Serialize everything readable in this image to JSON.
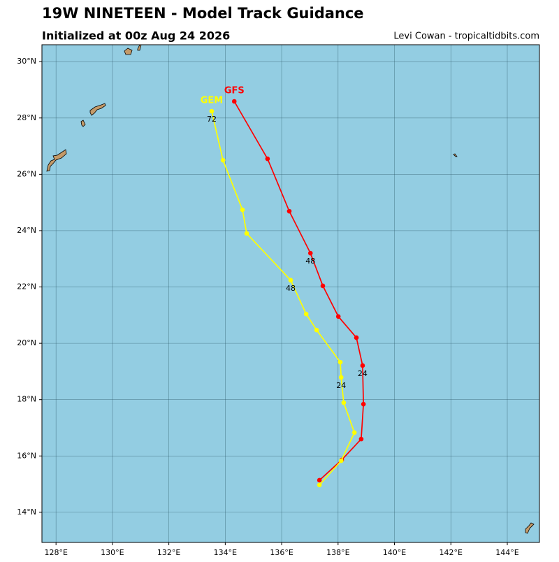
{
  "chart_data": {
    "type": "track",
    "title": "19W NINETEEN - Model Track Guidance",
    "subtitle": "Initialized at 00z Aug 24 2026",
    "credit": "Levi Cowan - tropicaltidbits.com",
    "xlim": [
      127.5,
      145.14
    ],
    "ylim": [
      12.93,
      30.6
    ],
    "xticks": [
      {
        "value": 128,
        "label": "128°E"
      },
      {
        "value": 130,
        "label": "130°E"
      },
      {
        "value": 132,
        "label": "132°E"
      },
      {
        "value": 134,
        "label": "134°E"
      },
      {
        "value": 136,
        "label": "136°E"
      },
      {
        "value": 138,
        "label": "138°E"
      },
      {
        "value": 140,
        "label": "140°E"
      },
      {
        "value": 142,
        "label": "142°E"
      },
      {
        "value": 144,
        "label": "144°E"
      }
    ],
    "yticks": [
      {
        "value": 14,
        "label": "14°N"
      },
      {
        "value": 16,
        "label": "16°N"
      },
      {
        "value": 18,
        "label": "18°N"
      },
      {
        "value": 20,
        "label": "20°N"
      },
      {
        "value": 22,
        "label": "22°N"
      },
      {
        "value": 24,
        "label": "24°N"
      },
      {
        "value": 26,
        "label": "26°N"
      },
      {
        "value": 28,
        "label": "28°N"
      },
      {
        "value": 30,
        "label": "30°N"
      }
    ],
    "grid": true,
    "series": [
      {
        "name": "GFS",
        "color": "#ff0000",
        "x": [
          137.34,
          138.13,
          138.82,
          138.9,
          138.87,
          138.65,
          138.01,
          137.46,
          137.02,
          136.27,
          135.5,
          134.32
        ],
        "values": [
          15.14,
          15.86,
          16.6,
          17.84,
          19.21,
          20.2,
          20.95,
          22.04,
          23.2,
          24.69,
          26.55,
          28.59
        ],
        "hours": [
          null,
          null,
          null,
          null,
          24,
          null,
          null,
          null,
          48,
          null,
          null,
          null
        ]
      },
      {
        "name": "GEM",
        "color": "#ffff00",
        "x": [
          137.34,
          138.11,
          138.58,
          138.2,
          138.11,
          138.08,
          137.24,
          136.87,
          136.32,
          134.76,
          134.61,
          133.92,
          133.52
        ],
        "values": [
          14.97,
          15.83,
          16.83,
          17.89,
          18.79,
          19.33,
          20.47,
          21.04,
          22.24,
          23.9,
          24.74,
          26.5,
          28.24
        ],
        "hours": [
          null,
          null,
          null,
          null,
          24,
          null,
          null,
          null,
          48,
          null,
          null,
          null,
          72
        ]
      }
    ]
  }
}
